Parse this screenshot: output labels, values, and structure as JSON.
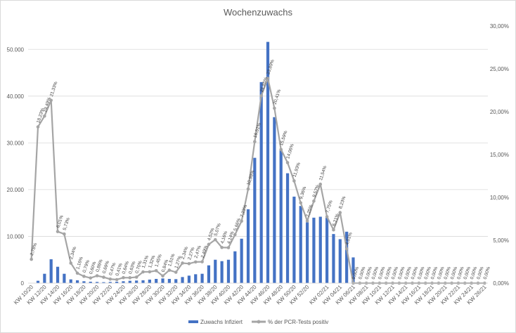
{
  "chart_data": {
    "type": "bar",
    "title": "Wochenzuwachs",
    "grid": true,
    "legend_position": "bottom",
    "categories": [
      "KW 10/20",
      "KW 11/20",
      "KW 12/20",
      "KW 13/20",
      "KW 14/20",
      "KW 15/20",
      "KW 16/20",
      "KW 17/20",
      "KW 18/20",
      "KW 19/20",
      "KW 20/20",
      "KW 21/20",
      "KW 22/20",
      "KW 23/20",
      "KW 24/20",
      "KW 25/20",
      "KW 26/20",
      "KW 27/20",
      "KW 28/20",
      "KW 29/20",
      "KW 30/20",
      "KW 31/20",
      "KW 32/20",
      "KW 33/20",
      "KW 34/20",
      "KW 35/20",
      "KW 36/20",
      "KW 37/20",
      "KW 38/20",
      "KW 39/20",
      "KW 40/20",
      "KW 41/20",
      "KW 42/20",
      "KW 43/20",
      "KW 44/20",
      "KW 45/20",
      "KW 46/20",
      "KW 47/20",
      "KW 48/20",
      "KW 49/20",
      "KW 50/20",
      "KW 51/20",
      "KW 52/20",
      "KW 53/20",
      "KW 01/21",
      "KW 02/21",
      "KW 03/21",
      "KW 04/21",
      "KW 05/21",
      "KW 06/21",
      "KW 07/21",
      "KW 08/21",
      "KW 09/21",
      "KW 10/21",
      "KW 11/21",
      "KW 12/21",
      "KW 13/21",
      "KW 14/21",
      "KW 15/21",
      "KW 16/21",
      "KW 17/21",
      "KW 18/21",
      "KW 19/21",
      "KW 20/21",
      "KW 21/21",
      "KW 22/21",
      "KW 23/21",
      "KW 24/21",
      "KW 25/21",
      "KW 26/21"
    ],
    "x_tick_labels": [
      "KW 10/20",
      "KW 12/20",
      "KW 14/20",
      "KW 16/20",
      "KW 18/20",
      "KW 20/20",
      "KW 22/20",
      "KW 24/20",
      "KW 26/20",
      "KW 28/20",
      "KW 30/20",
      "KW 32/20",
      "KW 34/20",
      "KW 36/20",
      "KW 38/20",
      "KW 40/20",
      "KW 42/20",
      "KW 44/20",
      "KW 46/20",
      "KW 48/20",
      "KW 50/20",
      "KW 52/20",
      "KW 02/21",
      "KW 04/21",
      "KW 06/21",
      "KW 08/21",
      "KW 10/21",
      "KW 12/21",
      "KW 14/21",
      "KW 16/21",
      "KW 18/21",
      "KW 20/21",
      "KW 22/21",
      "KW 24/21",
      "KW 26/21"
    ],
    "y_left": {
      "min": 0,
      "max": 55000,
      "ticks": [
        0,
        10000,
        20000,
        30000,
        40000,
        50000
      ],
      "tick_labels": [
        "0",
        "10.000",
        "20.000",
        "30.000",
        "40.000",
        "50.000"
      ]
    },
    "y_right": {
      "min": 0,
      "max": 0.3,
      "ticks": [
        0,
        0.05,
        0.1,
        0.15,
        0.2,
        0.25,
        0.3
      ],
      "tick_labels": [
        "0,00%",
        "5,00%",
        "10,00%",
        "15,00%",
        "20,00%",
        "25,00%",
        "30,00%"
      ]
    },
    "series": [
      {
        "name": "Zuwachs Infiziert",
        "kind": "bar",
        "axis": "left",
        "color": "#4472c4",
        "values": [
          0,
          500,
          2000,
          5100,
          3500,
          2000,
          800,
          600,
          400,
          300,
          250,
          200,
          250,
          300,
          400,
          500,
          550,
          600,
          750,
          900,
          1000,
          900,
          850,
          1300,
          1600,
          1900,
          2000,
          3800,
          5000,
          4700,
          5000,
          6800,
          9500,
          15800,
          26800,
          43000,
          51600,
          35500,
          28500,
          23500,
          18500,
          16500,
          13000,
          14000,
          14200,
          14000,
          10500,
          9400,
          11000,
          5500,
          0,
          0,
          0,
          0,
          0,
          0,
          0,
          0,
          0,
          0,
          0,
          0,
          0,
          0,
          0,
          0,
          0,
          0,
          0,
          0
        ]
      },
      {
        "name": "% der PCR-Tests positiv",
        "kind": "line",
        "axis": "right",
        "color": "#a5a5a5",
        "values": [
          0.0278,
          0.1823,
          0.1949,
          0.2133,
          0.0601,
          0.0573,
          0.0234,
          0.0116,
          0.0079,
          0.006,
          0.0086,
          0.0069,
          0.0047,
          0.0041,
          0.0064,
          0.0063,
          0.007,
          0.0131,
          0.0132,
          0.0145,
          0.0084,
          0.0151,
          0.0127,
          0.0234,
          0.0227,
          0.0247,
          0.0249,
          0.0452,
          0.0507,
          0.0416,
          0.0414,
          0.0566,
          0.0723,
          0.1098,
          0.1651,
          0.2185,
          0.2389,
          0.2041,
          0.1559,
          0.1406,
          0.1193,
          0.0936,
          0.0725,
          0.0957,
          0.1154,
          0.0775,
          0.0621,
          0.0823,
          0.0401,
          0,
          0,
          0,
          0,
          0,
          0,
          0,
          0,
          0,
          0,
          0,
          0,
          0,
          0,
          0,
          0,
          0,
          0,
          0,
          0,
          0
        ],
        "labels": [
          "2,78%",
          "18,23%",
          "19,49%",
          "21,33%",
          "6,01%",
          "5,73%",
          "2,34%",
          "1,16%",
          "0,79%",
          "0,60%",
          "0,86%",
          "0,69%",
          "0,47%",
          "0,41%",
          "0,64%",
          "0,63%",
          "0,70%",
          "1,31%",
          "1,32%",
          "1,45%",
          "0,84%",
          "1,51%",
          "1,27%",
          "2,34%",
          "2,27%",
          "2,47%",
          "2,49%",
          "4,52%",
          "5,07%",
          "4,16%",
          "4,14%",
          "5,66%",
          "7,23%",
          "10,98%",
          "16,51%",
          "21,85%",
          "23,89%",
          "20,41%",
          "15,59%",
          "14,06%",
          "11,93%",
          "9,36%",
          "7,25%",
          "9,57%",
          "11,54%",
          "7,75%",
          "6,21%",
          "8,23%",
          "4,01%",
          "0,00%",
          "0,00%",
          "0,00%",
          "0,00%",
          "0,00%",
          "0,00%",
          "0,00%",
          "0,00%",
          "0,00%",
          "0,00%",
          "0,00%",
          "0,00%",
          "0,00%",
          "0,00%",
          "0,00%",
          "0,00%",
          "0,00%",
          "0,00%",
          "0,00%",
          "0,00%",
          "0,00%"
        ]
      }
    ]
  }
}
